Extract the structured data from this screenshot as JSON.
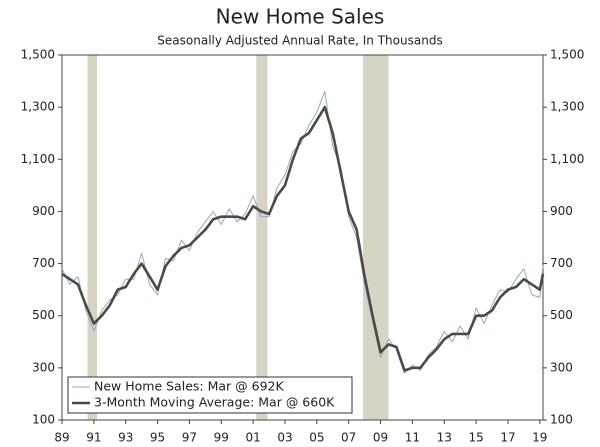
{
  "chart_data": {
    "type": "line",
    "title": "New Home Sales",
    "subtitle": "Seasonally Adjusted Annual Rate, In Thousands",
    "x": [
      1989.0,
      1989.5,
      1990.0,
      1990.5,
      1991.0,
      1991.5,
      1992.0,
      1992.5,
      1993.0,
      1993.5,
      1994.0,
      1994.5,
      1995.0,
      1995.5,
      1996.0,
      1996.5,
      1997.0,
      1997.5,
      1998.0,
      1998.5,
      1999.0,
      1999.5,
      2000.0,
      2000.5,
      2001.0,
      2001.5,
      2002.0,
      2002.5,
      2003.0,
      2003.5,
      2004.0,
      2004.5,
      2005.0,
      2005.5,
      2006.0,
      2006.5,
      2007.0,
      2007.5,
      2008.0,
      2008.5,
      2009.0,
      2009.5,
      2010.0,
      2010.5,
      2011.0,
      2011.5,
      2012.0,
      2012.5,
      2013.0,
      2013.5,
      2014.0,
      2014.5,
      2015.0,
      2015.5,
      2016.0,
      2016.5,
      2017.0,
      2017.5,
      2018.0,
      2018.5,
      2019.0,
      2019.2
    ],
    "series": [
      {
        "name": "New Home Sales: Mar @ 692K",
        "color": "#8fa9c9",
        "width": 1,
        "values": [
          680,
          620,
          650,
          520,
          440,
          520,
          560,
          580,
          640,
          640,
          740,
          620,
          580,
          720,
          710,
          790,
          750,
          820,
          860,
          900,
          850,
          910,
          860,
          890,
          960,
          880,
          880,
          990,
          1040,
          1130,
          1160,
          1230,
          1280,
          1360,
          1150,
          1070,
          880,
          800,
          620,
          480,
          340,
          410,
          370,
          280,
          310,
          290,
          350,
          380,
          440,
          400,
          460,
          410,
          530,
          470,
          540,
          600,
          590,
          640,
          680,
          580,
          570,
          692
        ]
      },
      {
        "name": "3-Month Moving Average: Mar @ 660K",
        "color": "#4f4943",
        "width": 2.6,
        "values": [
          660,
          640,
          620,
          540,
          470,
          500,
          540,
          600,
          610,
          660,
          700,
          650,
          600,
          690,
          730,
          760,
          770,
          800,
          830,
          870,
          880,
          880,
          880,
          870,
          920,
          900,
          890,
          960,
          1000,
          1100,
          1180,
          1200,
          1250,
          1300,
          1200,
          1050,
          900,
          830,
          650,
          500,
          360,
          390,
          380,
          290,
          300,
          300,
          340,
          370,
          410,
          430,
          430,
          430,
          500,
          500,
          520,
          570,
          600,
          610,
          640,
          620,
          600,
          660
        ]
      }
    ],
    "recessions": [
      [
        1990.6,
        1991.2
      ],
      [
        2001.2,
        2001.9
      ],
      [
        2007.9,
        2009.5
      ]
    ],
    "recession_color": "#d7d3c5",
    "xlim": [
      1989,
      2019.2
    ],
    "xticks": [
      {
        "value": 1989,
        "label": "89"
      },
      {
        "value": 1991,
        "label": "91"
      },
      {
        "value": 1993,
        "label": "93"
      },
      {
        "value": 1995,
        "label": "95"
      },
      {
        "value": 1997,
        "label": "97"
      },
      {
        "value": 1999,
        "label": "99"
      },
      {
        "value": 2001,
        "label": "01"
      },
      {
        "value": 2003,
        "label": "03"
      },
      {
        "value": 2005,
        "label": "05"
      },
      {
        "value": 2007,
        "label": "07"
      },
      {
        "value": 2009,
        "label": "09"
      },
      {
        "value": 2011,
        "label": "11"
      },
      {
        "value": 2013,
        "label": "13"
      },
      {
        "value": 2015,
        "label": "15"
      },
      {
        "value": 2017,
        "label": "17"
      },
      {
        "value": 2019,
        "label": "19"
      }
    ],
    "ylim": [
      100,
      1500
    ],
    "yticks": [
      100,
      300,
      500,
      700,
      900,
      {
        "value": 1100,
        "label": "1,100"
      },
      {
        "value": 1300,
        "label": "1,300"
      },
      {
        "value": 1500,
        "label": "1,500"
      }
    ],
    "y2lim": [
      100,
      1500
    ],
    "y2ticks": [
      100,
      300,
      500,
      700,
      900,
      {
        "value": 1100,
        "label": "1,100"
      },
      {
        "value": 1300,
        "label": "1,300"
      },
      {
        "value": 1500,
        "label": "1,500"
      }
    ],
    "legend": "lower-left"
  }
}
